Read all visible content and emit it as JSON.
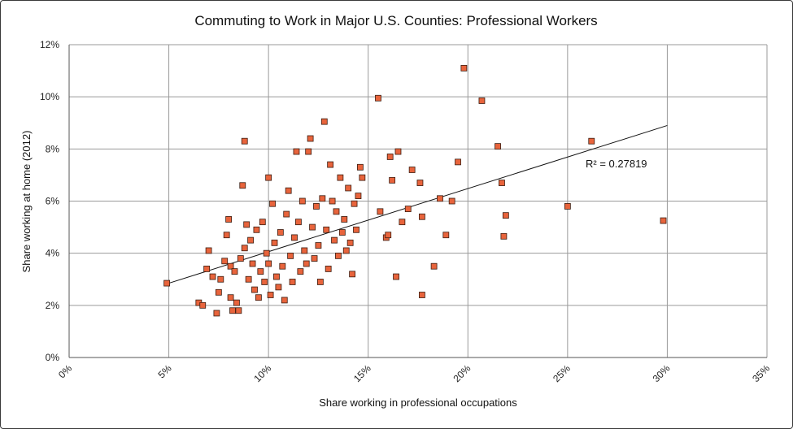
{
  "chart_data": {
    "type": "scatter",
    "title": "Commuting to Work in Major U.S. Counties: Professional Workers",
    "xlabel": "Share working in professional occupations",
    "ylabel": "Share working at home (2012)",
    "xlim": [
      0,
      35
    ],
    "ylim": [
      0,
      12
    ],
    "x_ticks": [
      "0%",
      "5%",
      "10%",
      "15%",
      "20%",
      "25%",
      "30%",
      "35%"
    ],
    "y_ticks": [
      "0%",
      "2%",
      "4%",
      "6%",
      "8%",
      "10%",
      "12%"
    ],
    "grid": true,
    "marker_color": "#e8643c",
    "trendline": {
      "x": [
        5,
        30
      ],
      "y": [
        2.85,
        8.9
      ],
      "label": "R² = 0.27819"
    },
    "points": [
      [
        4.9,
        2.85
      ],
      [
        6.5,
        2.1
      ],
      [
        6.7,
        2.0
      ],
      [
        6.9,
        3.4
      ],
      [
        7.0,
        4.1
      ],
      [
        7.2,
        3.1
      ],
      [
        7.4,
        1.7
      ],
      [
        7.5,
        2.5
      ],
      [
        7.6,
        3.0
      ],
      [
        7.8,
        3.7
      ],
      [
        7.9,
        4.7
      ],
      [
        8.0,
        5.3
      ],
      [
        8.1,
        3.5
      ],
      [
        8.1,
        2.3
      ],
      [
        8.2,
        1.8
      ],
      [
        8.3,
        3.3
      ],
      [
        8.4,
        2.1
      ],
      [
        8.5,
        1.8
      ],
      [
        8.6,
        3.8
      ],
      [
        8.7,
        6.6
      ],
      [
        8.8,
        4.2
      ],
      [
        8.8,
        8.3
      ],
      [
        8.9,
        5.1
      ],
      [
        9.0,
        3.0
      ],
      [
        9.1,
        4.5
      ],
      [
        9.2,
        3.6
      ],
      [
        9.3,
        2.6
      ],
      [
        9.4,
        4.9
      ],
      [
        9.5,
        2.3
      ],
      [
        9.6,
        3.3
      ],
      [
        9.7,
        5.2
      ],
      [
        9.8,
        2.9
      ],
      [
        9.9,
        4.0
      ],
      [
        10.0,
        6.9
      ],
      [
        10.0,
        3.6
      ],
      [
        10.1,
        2.4
      ],
      [
        10.2,
        5.9
      ],
      [
        10.3,
        4.4
      ],
      [
        10.4,
        3.1
      ],
      [
        10.5,
        2.7
      ],
      [
        10.6,
        4.8
      ],
      [
        10.7,
        3.5
      ],
      [
        10.8,
        2.2
      ],
      [
        10.9,
        5.5
      ],
      [
        11.0,
        6.4
      ],
      [
        11.1,
        3.9
      ],
      [
        11.2,
        2.9
      ],
      [
        11.3,
        4.6
      ],
      [
        11.4,
        7.9
      ],
      [
        11.5,
        5.2
      ],
      [
        11.6,
        3.3
      ],
      [
        11.7,
        6.0
      ],
      [
        11.8,
        4.1
      ],
      [
        11.9,
        3.6
      ],
      [
        12.0,
        7.9
      ],
      [
        12.1,
        8.4
      ],
      [
        12.2,
        5.0
      ],
      [
        12.3,
        3.8
      ],
      [
        12.4,
        5.8
      ],
      [
        12.5,
        4.3
      ],
      [
        12.6,
        2.9
      ],
      [
        12.7,
        6.1
      ],
      [
        12.8,
        9.05
      ],
      [
        12.9,
        4.9
      ],
      [
        13.0,
        3.4
      ],
      [
        13.1,
        7.4
      ],
      [
        13.2,
        6.0
      ],
      [
        13.3,
        4.5
      ],
      [
        13.4,
        5.6
      ],
      [
        13.5,
        3.9
      ],
      [
        13.6,
        6.9
      ],
      [
        13.7,
        4.8
      ],
      [
        13.8,
        5.3
      ],
      [
        13.9,
        4.1
      ],
      [
        14.0,
        6.5
      ],
      [
        14.1,
        4.4
      ],
      [
        14.2,
        3.2
      ],
      [
        14.3,
        5.9
      ],
      [
        14.4,
        4.9
      ],
      [
        14.5,
        6.2
      ],
      [
        14.6,
        7.3
      ],
      [
        14.7,
        6.9
      ],
      [
        15.5,
        9.95
      ],
      [
        15.6,
        5.6
      ],
      [
        15.9,
        4.6
      ],
      [
        16.0,
        4.7
      ],
      [
        16.1,
        7.7
      ],
      [
        16.2,
        6.8
      ],
      [
        16.4,
        3.1
      ],
      [
        16.5,
        7.9
      ],
      [
        16.7,
        5.2
      ],
      [
        17.0,
        5.7
      ],
      [
        17.2,
        7.2
      ],
      [
        17.6,
        6.7
      ],
      [
        17.7,
        5.4
      ],
      [
        17.7,
        2.4
      ],
      [
        18.3,
        3.5
      ],
      [
        18.6,
        6.1
      ],
      [
        18.9,
        4.7
      ],
      [
        19.2,
        6.0
      ],
      [
        19.5,
        7.5
      ],
      [
        19.8,
        11.1
      ],
      [
        20.7,
        9.85
      ],
      [
        21.5,
        8.1
      ],
      [
        21.7,
        6.7
      ],
      [
        21.8,
        4.65
      ],
      [
        21.9,
        5.45
      ],
      [
        25.0,
        5.8
      ],
      [
        26.2,
        8.3
      ],
      [
        29.8,
        5.25
      ]
    ]
  }
}
